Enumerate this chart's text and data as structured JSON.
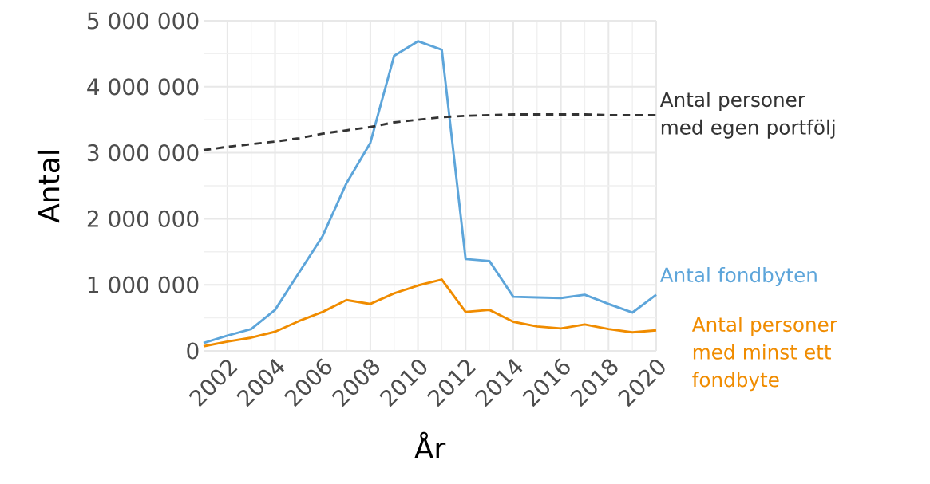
{
  "chart_data": {
    "type": "line",
    "xlabel": "År",
    "ylabel": "Antal",
    "x": [
      2001,
      2002,
      2003,
      2004,
      2005,
      2006,
      2007,
      2008,
      2009,
      2010,
      2011,
      2012,
      2013,
      2014,
      2015,
      2016,
      2017,
      2018,
      2019,
      2020
    ],
    "series": [
      {
        "name": "Antal fondbyten",
        "color": "#5da5da",
        "values": [
          120000,
          230000,
          330000,
          620000,
          1180000,
          1740000,
          2540000,
          3150000,
          4470000,
          4690000,
          4560000,
          1390000,
          1360000,
          820000,
          810000,
          800000,
          850000,
          710000,
          580000,
          850000
        ]
      },
      {
        "name": "Antal personer med minst ett fondbyte",
        "color": "#f08c00",
        "values": [
          70000,
          140000,
          200000,
          290000,
          450000,
          590000,
          770000,
          710000,
          870000,
          990000,
          1080000,
          590000,
          620000,
          440000,
          370000,
          340000,
          400000,
          330000,
          280000,
          310000
        ]
      },
      {
        "name": "Antal personer med egen portfölj",
        "color": "#333333",
        "line_style": "dashed",
        "values": [
          3040000,
          3090000,
          3130000,
          3170000,
          3220000,
          3290000,
          3340000,
          3390000,
          3460000,
          3500000,
          3540000,
          3560000,
          3570000,
          3580000,
          3580000,
          3580000,
          3580000,
          3570000,
          3570000,
          3570000
        ]
      }
    ],
    "xlim": [
      2001,
      2020
    ],
    "xticks": [
      2002,
      2004,
      2006,
      2008,
      2010,
      2012,
      2014,
      2016,
      2018,
      2020
    ],
    "ylim": [
      0,
      5000000
    ],
    "yticks": [
      0,
      {
        "value": 1000000,
        "label": "1 000 000"
      },
      {
        "value": 2000000,
        "label": "2 000 000"
      },
      {
        "value": 3000000,
        "label": "3 000 000"
      },
      {
        "value": 4000000,
        "label": "4 000 000"
      },
      {
        "value": 5000000,
        "label": "5 000 000"
      }
    ],
    "grid": true,
    "line_style": "solid",
    "marker": "none"
  }
}
